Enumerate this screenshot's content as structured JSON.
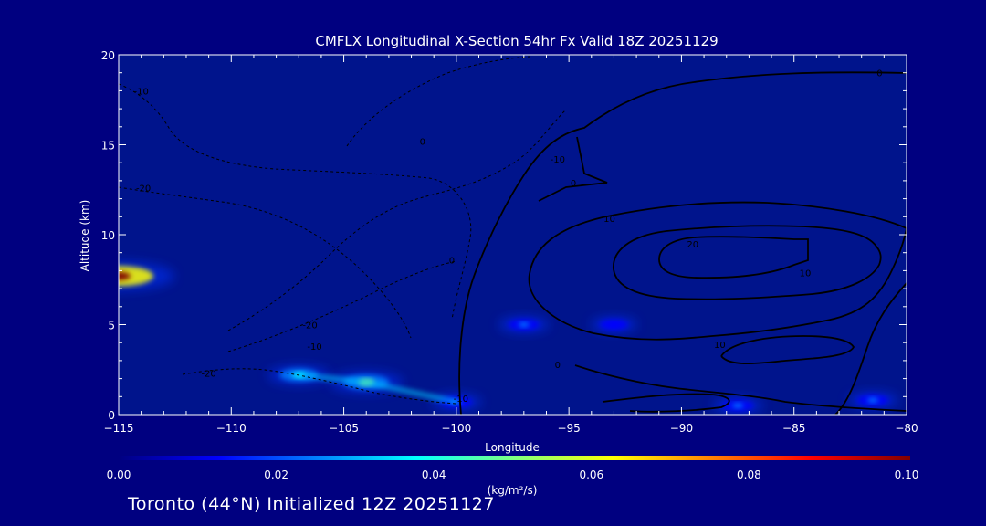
{
  "colors": {
    "background": "#000080",
    "plot_bg": "#00148c",
    "text": "#ffffff",
    "contour": "#000000",
    "colorbar_stops": [
      "#000080",
      "#0000ff",
      "#0080ff",
      "#00ffff",
      "#80ff80",
      "#ffff00",
      "#ff8000",
      "#ff0000",
      "#800000"
    ]
  },
  "chart_data": {
    "type": "heatmap",
    "title": "CMFLX Longitudinal X-Section 54hr  Fx Valid 18Z 20251129",
    "xlabel": "Longitude",
    "ylabel": "Altitude (km)",
    "xlim": [
      -115,
      -80
    ],
    "ylim": [
      0,
      20
    ],
    "x_ticks": [
      -115,
      -110,
      -105,
      -100,
      -95,
      -90,
      -85,
      -80
    ],
    "x_tick_labels": [
      "−115",
      "−110",
      "−105",
      "−100",
      "−95",
      "−90",
      "−85",
      "−80"
    ],
    "y_ticks": [
      0,
      5,
      10,
      15,
      20
    ],
    "y_tick_labels": [
      "0",
      "5",
      "10",
      "15",
      "20"
    ],
    "colorbar": {
      "label": "(kg/m²/s)",
      "range": [
        0,
        0.1
      ],
      "tick_labels": [
        "0.00",
        "0.02",
        "0.04",
        "0.06",
        "0.08",
        "0.10"
      ]
    },
    "flux_features": [
      {
        "lon": -115.0,
        "alt": 7.7,
        "value": 0.1
      },
      {
        "lon": -107.0,
        "alt": 2.2,
        "value": 0.035
      },
      {
        "lon": -104.0,
        "alt": 1.8,
        "value": 0.05
      },
      {
        "lon": -100.0,
        "alt": 0.7,
        "value": 0.02
      },
      {
        "lon": -97.0,
        "alt": 5.0,
        "value": 0.02
      },
      {
        "lon": -93.0,
        "alt": 5.0,
        "value": 0.015
      },
      {
        "lon": -87.5,
        "alt": 0.5,
        "value": 0.02
      },
      {
        "lon": -81.5,
        "alt": 0.8,
        "value": 0.02
      }
    ],
    "contour_labels": [
      {
        "text": "-10",
        "lon": -114,
        "alt": 17.8
      },
      {
        "text": "-20",
        "lon": -113.9,
        "alt": 12.4
      },
      {
        "text": "-20",
        "lon": -106.5,
        "alt": 4.8
      },
      {
        "text": "-10",
        "lon": -106.3,
        "alt": 3.6
      },
      {
        "text": "-20",
        "lon": -111,
        "alt": 2.1
      },
      {
        "text": "-10",
        "lon": -99.8,
        "alt": 0.7
      },
      {
        "text": "-10",
        "lon": -95.5,
        "alt": 14
      },
      {
        "text": "0",
        "lon": -101.5,
        "alt": 15
      },
      {
        "text": "0",
        "lon": -100.2,
        "alt": 8.4
      },
      {
        "text": "0",
        "lon": -94.8,
        "alt": 12.7
      },
      {
        "text": "0",
        "lon": -95.5,
        "alt": 2.6
      },
      {
        "text": "10",
        "lon": -93.2,
        "alt": 10.7
      },
      {
        "text": "10",
        "lon": -84.5,
        "alt": 7.7
      },
      {
        "text": "20",
        "lon": -89.5,
        "alt": 9.3
      },
      {
        "text": "10",
        "lon": -88.3,
        "alt": 3.7
      },
      {
        "text": "0",
        "lon": -81.2,
        "alt": 18.8
      }
    ]
  },
  "footer": {
    "text": "Toronto (44°N) Initialized 12Z 20251127"
  }
}
